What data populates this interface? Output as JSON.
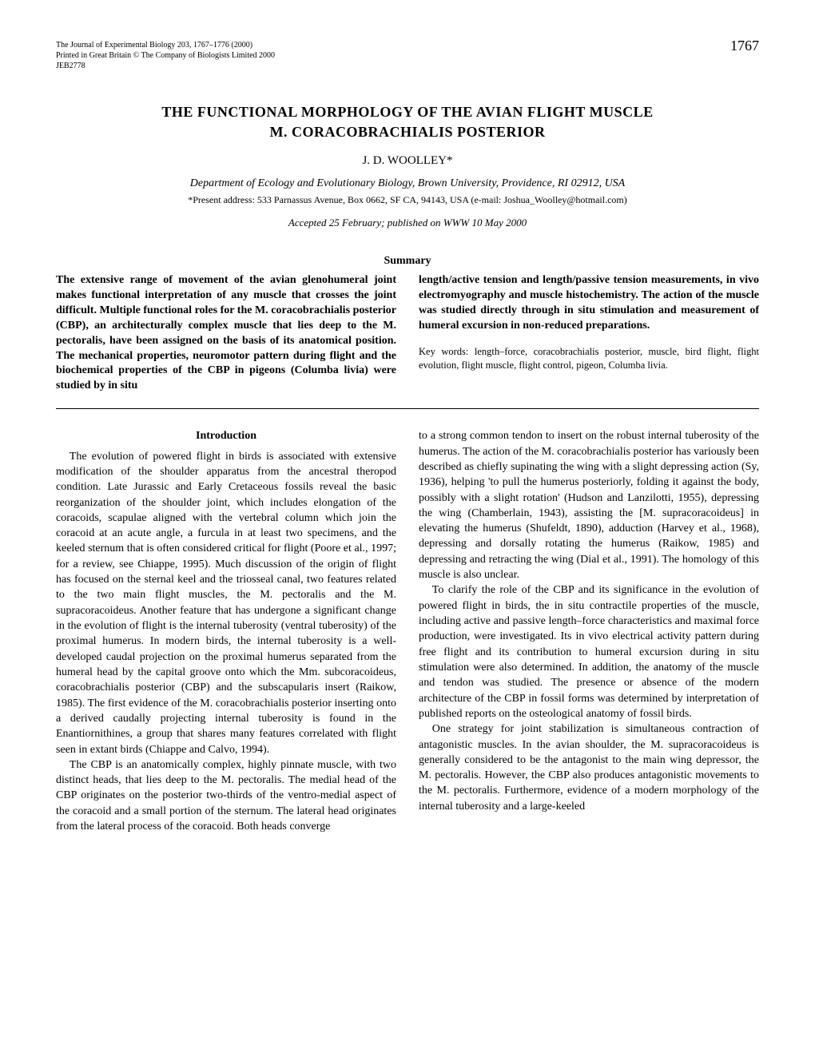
{
  "header": {
    "journal_line1": "The Journal of Experimental Biology 203, 1767–1776 (2000)",
    "journal_line2": "Printed in Great Britain © The Company of Biologists Limited 2000",
    "journal_line3": "JEB2778",
    "page_number": "1767"
  },
  "title": {
    "line1": "THE FUNCTIONAL MORPHOLOGY OF THE AVIAN FLIGHT MUSCLE",
    "line2": "M. CORACOBRACHIALIS POSTERIOR"
  },
  "author": "J. D. WOOLLEY*",
  "affiliation": "Department of Ecology and Evolutionary Biology, Brown University, Providence, RI 02912, USA",
  "address_note": "*Present address: 533 Parnassus Avenue, Box 0662, SF CA, 94143, USA (e-mail: Joshua_Woolley@hotmail.com)",
  "accepted": "Accepted 25 February; published on WWW 10 May 2000",
  "summary": {
    "heading": "Summary",
    "left": "The extensive range of movement of the avian glenohumeral joint makes functional interpretation of any muscle that crosses the joint difficult. Multiple functional roles for the M. coracobrachialis posterior (CBP), an architecturally complex muscle that lies deep to the M. pectoralis, have been assigned on the basis of its anatomical position. The mechanical properties, neuromotor pattern during flight and the biochemical properties of the CBP in pigeons (Columba livia) were studied by in situ",
    "right": "length/active tension and length/passive tension measurements, in vivo electromyography and muscle histochemistry. The action of the muscle was studied directly through in situ stimulation and measurement of humeral excursion in non-reduced preparations.",
    "keywords": "Key words: length–force, coracobrachialis posterior, muscle, bird flight, flight evolution, flight muscle, flight control, pigeon, Columba livia."
  },
  "intro": {
    "heading": "Introduction",
    "left_p1": "The evolution of powered flight in birds is associated with extensive modification of the shoulder apparatus from the ancestral theropod condition. Late Jurassic and Early Cretaceous fossils reveal the basic reorganization of the shoulder joint, which includes elongation of the coracoids, scapulae aligned with the vertebral column which join the coracoid at an acute angle, a furcula in at least two specimens, and the keeled sternum that is often considered critical for flight (Poore et al., 1997; for a review, see Chiappe, 1995). Much discussion of the origin of flight has focused on the sternal keel and the triosseal canal, two features related to the two main flight muscles, the M. pectoralis and the M. supracoracoideus. Another feature that has undergone a significant change in the evolution of flight is the internal tuberosity (ventral tuberosity) of the proximal humerus. In modern birds, the internal tuberosity is a well-developed caudal projection on the proximal humerus separated from the humeral head by the capital groove onto which the Mm. subcoracoideus, coracobrachialis posterior (CBP) and the subscapularis insert (Raikow, 1985). The first evidence of the M. coracobrachialis posterior inserting onto a derived caudally projecting internal tuberosity is found in the Enantiornithines, a group that shares many features correlated with flight seen in extant birds (Chiappe and Calvo, 1994).",
    "left_p2": "The CBP is an anatomically complex, highly pinnate muscle, with two distinct heads, that lies deep to the M. pectoralis. The medial head of the CBP originates on the posterior two-thirds of the ventro-medial aspect of the coracoid and a small portion of the sternum. The lateral head originates from the lateral process of the coracoid. Both heads converge",
    "right_p1": "to a strong common tendon to insert on the robust internal tuberosity of the humerus. The action of the M. coracobrachialis posterior has variously been described as chiefly supinating the wing with a slight depressing action (Sy, 1936), helping 'to pull the humerus posteriorly, folding it against the body, possibly with a slight rotation' (Hudson and Lanzilotti, 1955), depressing the wing (Chamberlain, 1943), assisting the [M. supracoracoideus] in elevating the humerus (Shufeldt, 1890), adduction (Harvey et al., 1968), depressing and dorsally rotating the humerus (Raikow, 1985) and depressing and retracting the wing (Dial et al., 1991). The homology of this muscle is also unclear.",
    "right_p2": "To clarify the role of the CBP and its significance in the evolution of powered flight in birds, the in situ contractile properties of the muscle, including active and passive length–force characteristics and maximal force production, were investigated. Its in vivo electrical activity pattern during free flight and its contribution to humeral excursion during in situ stimulation were also determined. In addition, the anatomy of the muscle and tendon was studied. The presence or absence of the modern architecture of the CBP in fossil forms was determined by interpretation of published reports on the osteological anatomy of fossil birds.",
    "right_p3": "One strategy for joint stabilization is simultaneous contraction of antagonistic muscles. In the avian shoulder, the M. supracoracoideus is generally considered to be the antagonist to the main wing depressor, the M. pectoralis. However, the CBP also produces antagonistic movements to the M. pectoralis. Furthermore, evidence of a modern morphology of the internal tuberosity and a large-keeled"
  }
}
